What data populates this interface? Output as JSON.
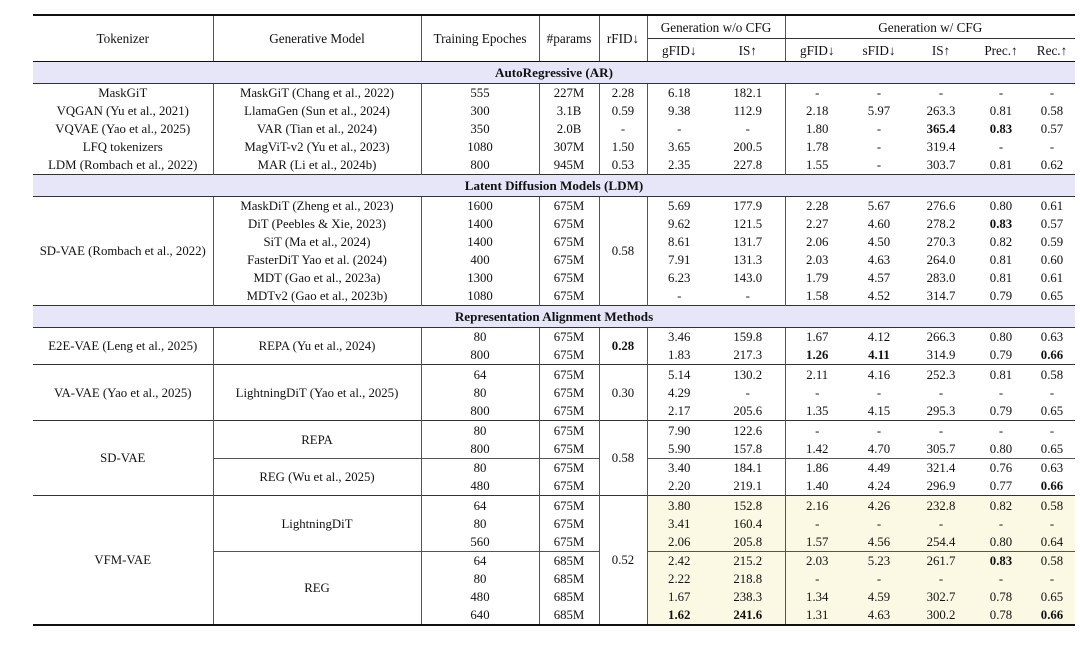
{
  "colors": {
    "band_bg": "#e6e6f8",
    "highlight_bg": "#fbf9e4",
    "rule": "#111111"
  },
  "table": {
    "header": {
      "tokenizer": "Tokenizer",
      "model": "Generative Model",
      "epochs": "Training Epoches",
      "params": "#params",
      "rfid": "rFID↓",
      "group_wo_cfg": "Generation w/o CFG",
      "group_w_cfg": "Generation w/ CFG",
      "sub_wo": [
        "gFID↓",
        "IS↑"
      ],
      "sub_w": [
        "gFID↓",
        "sFID↓",
        "IS↑",
        "Prec.↑",
        "Rec.↑"
      ]
    },
    "rows": [
      {
        "band": "AutoRegressive (AR)"
      },
      {
        "cells": [
          "MaskGiT",
          "MaskGiT (Chang et al., 2022)",
          "555",
          "227M",
          "2.28",
          "6.18",
          "182.1",
          "-",
          "-",
          "-",
          "-",
          "-"
        ]
      },
      {
        "cells": [
          "VQGAN (Yu et al., 2021)",
          "LlamaGen (Sun et al., 2024)",
          "300",
          "3.1B",
          "0.59",
          "9.38",
          "112.9",
          "2.18",
          "5.97",
          "263.3",
          "0.81",
          "0.58"
        ]
      },
      {
        "cells": [
          "VQVAE (Yao et al., 2025)",
          "VAR (Tian et al., 2024)",
          "350",
          "2.0B",
          "-",
          "-",
          "-",
          "1.80",
          "-",
          {
            "t": "365.4",
            "b": true
          },
          {
            "t": "0.83",
            "b": true
          },
          "0.57"
        ]
      },
      {
        "cells": [
          "LFQ tokenizers",
          "MagViT-v2 (Yu et al., 2023)",
          "1080",
          "307M",
          "1.50",
          "3.65",
          "200.5",
          "1.78",
          "-",
          "319.4",
          "-",
          "-"
        ]
      },
      {
        "cells": [
          "LDM (Rombach et al., 2022)",
          "MAR (Li et al., 2024b)",
          "800",
          "945M",
          "0.53",
          "2.35",
          "227.8",
          "1.55",
          "-",
          "303.7",
          "0.81",
          "0.62"
        ]
      },
      {
        "band": "Latent Diffusion Models (LDM)"
      },
      {
        "cells": [
          {
            "t": "SD-VAE (Rombach et al., 2022)",
            "rs": 6
          },
          "MaskDiT (Zheng et al., 2023)",
          "1600",
          "675M",
          {
            "t": "0.58",
            "rs": 6
          },
          "5.69",
          "177.9",
          "2.28",
          "5.67",
          "276.6",
          "0.80",
          "0.61"
        ]
      },
      {
        "cells": [
          "DiT (Peebles & Xie, 2023)",
          "1400",
          "675M",
          "9.62",
          "121.5",
          "2.27",
          "4.60",
          "278.2",
          {
            "t": "0.83",
            "b": true
          },
          "0.57"
        ]
      },
      {
        "cells": [
          "SiT (Ma et al., 2024)",
          "1400",
          "675M",
          "8.61",
          "131.7",
          "2.06",
          "4.50",
          "270.3",
          "0.82",
          "0.59"
        ]
      },
      {
        "cells": [
          "FasterDiT Yao et al. (2024)",
          "400",
          "675M",
          "7.91",
          "131.3",
          "2.03",
          "4.63",
          "264.0",
          "0.81",
          "0.60"
        ]
      },
      {
        "cells": [
          "MDT (Gao et al., 2023a)",
          "1300",
          "675M",
          "6.23",
          "143.0",
          "1.79",
          "4.57",
          "283.0",
          "0.81",
          "0.61"
        ]
      },
      {
        "cells": [
          "MDTv2 (Gao et al., 2023b)",
          "1080",
          "675M",
          "-",
          "-",
          "1.58",
          "4.52",
          "314.7",
          "0.79",
          "0.65"
        ]
      },
      {
        "band": "Representation Alignment Methods"
      },
      {
        "cells": [
          {
            "t": "E2E-VAE (Leng et al., 2025)",
            "rs": 2
          },
          {
            "t": "REPA (Yu et al., 2024)",
            "rs": 2
          },
          "80",
          "675M",
          {
            "t": "0.28",
            "rs": 2,
            "b": true
          },
          "3.46",
          "159.8",
          "1.67",
          "4.12",
          "266.3",
          "0.80",
          "0.63"
        ]
      },
      {
        "cells": [
          "800",
          "675M",
          "1.83",
          "217.3",
          {
            "t": "1.26",
            "b": true
          },
          {
            "t": "4.11",
            "b": true
          },
          "314.9",
          "0.79",
          {
            "t": "0.66",
            "b": true
          }
        ]
      },
      {
        "sep": "strong",
        "cells": [
          {
            "t": "VA-VAE (Yao et al., 2025)",
            "rs": 3
          },
          {
            "t": "LightningDiT (Yao et al., 2025)",
            "rs": 3
          },
          "64",
          "675M",
          {
            "t": "0.30",
            "rs": 3
          },
          "5.14",
          "130.2",
          "2.11",
          "4.16",
          "252.3",
          "0.81",
          "0.58"
        ]
      },
      {
        "cells": [
          "80",
          "675M",
          "4.29",
          "-",
          "-",
          "-",
          "-",
          "-",
          "-"
        ]
      },
      {
        "cells": [
          "800",
          "675M",
          "2.17",
          "205.6",
          "1.35",
          "4.15",
          "295.3",
          "0.79",
          "0.65"
        ]
      },
      {
        "sep": "strong",
        "cells": [
          {
            "t": "SD-VAE",
            "rs": 4
          },
          {
            "t": "REPA",
            "rs": 2
          },
          "80",
          "675M",
          {
            "t": "0.58",
            "rs": 4
          },
          "7.90",
          "122.6",
          "-",
          "-",
          "-",
          "-",
          "-"
        ]
      },
      {
        "cells": [
          "800",
          "675M",
          "5.90",
          "157.8",
          "1.42",
          "4.70",
          "305.7",
          "0.80",
          "0.65"
        ]
      },
      {
        "sep": "light",
        "cells": [
          {
            "t": "REG (Wu et al., 2025)",
            "rs": 2
          },
          "80",
          "675M",
          "3.40",
          "184.1",
          "1.86",
          "4.49",
          "321.4",
          "0.76",
          "0.63"
        ]
      },
      {
        "cells": [
          "480",
          "675M",
          "2.20",
          "219.1",
          "1.40",
          "4.24",
          "296.9",
          "0.77",
          {
            "t": "0.66",
            "b": true
          }
        ]
      },
      {
        "sep": "strong",
        "hl": true,
        "cells": [
          {
            "t": "VFM-VAE",
            "rs": 7
          },
          {
            "t": "LightningDiT",
            "rs": 3
          },
          "64",
          "675M",
          {
            "t": "0.52",
            "rs": 7
          },
          "3.80",
          "152.8",
          "2.16",
          "4.26",
          "232.8",
          "0.82",
          "0.58"
        ]
      },
      {
        "hl": true,
        "cells": [
          "80",
          "675M",
          "3.41",
          "160.4",
          "-",
          "-",
          "-",
          "-",
          "-"
        ]
      },
      {
        "hl": true,
        "cells": [
          "560",
          "675M",
          "2.06",
          "205.8",
          "1.57",
          "4.56",
          "254.4",
          "0.80",
          "0.64"
        ]
      },
      {
        "sep": "light",
        "hl": true,
        "cells": [
          {
            "t": "REG",
            "rs": 4
          },
          "64",
          "685M",
          "2.42",
          "215.2",
          "2.03",
          "5.23",
          "261.7",
          {
            "t": "0.83",
            "b": true
          },
          "0.58"
        ]
      },
      {
        "hl": true,
        "cells": [
          "80",
          "685M",
          "2.22",
          "218.8",
          "-",
          "-",
          "-",
          "-",
          "-"
        ]
      },
      {
        "hl": true,
        "cells": [
          "480",
          "685M",
          "1.67",
          "238.3",
          "1.34",
          "4.59",
          "302.7",
          "0.78",
          "0.65"
        ]
      },
      {
        "hl": true,
        "cells": [
          "640",
          "685M",
          {
            "t": "1.62",
            "b": true
          },
          {
            "t": "241.6",
            "b": true
          },
          "1.31",
          "4.63",
          "300.2",
          "0.78",
          {
            "t": "0.66",
            "b": true
          }
        ]
      }
    ]
  }
}
